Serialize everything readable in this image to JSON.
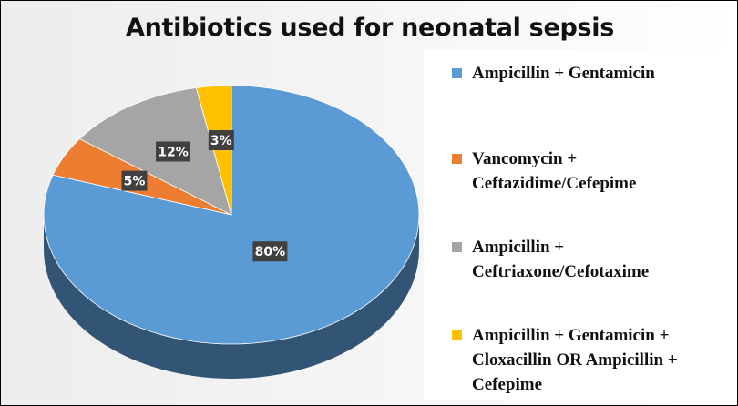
{
  "colors": {
    "ampicillin_gentamicin": "#5b9bd5",
    "vancomycin": "#ed7d31",
    "ampicillin_ceftriaxone": "#a5a5a5",
    "combination": "#ffc000",
    "label_box": "#404040"
  },
  "chart_data": {
    "type": "pie",
    "title": "Antibiotics used for neonatal sepsis",
    "legend_position": "right",
    "three_d": true,
    "start_angle_deg": 0,
    "direction": "clockwise",
    "slices": [
      {
        "label": "Ampicillin + Gentamicin",
        "value": 80,
        "display": "80%",
        "color": "#5b9bd5"
      },
      {
        "label": "Vancomycin + Ceftazidime/Cefepime",
        "value": 5,
        "display": "5%",
        "color": "#ed7d31"
      },
      {
        "label": "Ampicillin + Ceftriaxone/Cefotaxime",
        "value": 12,
        "display": "12%",
        "color": "#a5a5a5"
      },
      {
        "label": "Ampicillin + Gentamicin + Cloxacillin OR Ampicillin + Cefepime",
        "value": 3,
        "display": "3%",
        "color": "#ffc000"
      }
    ]
  }
}
